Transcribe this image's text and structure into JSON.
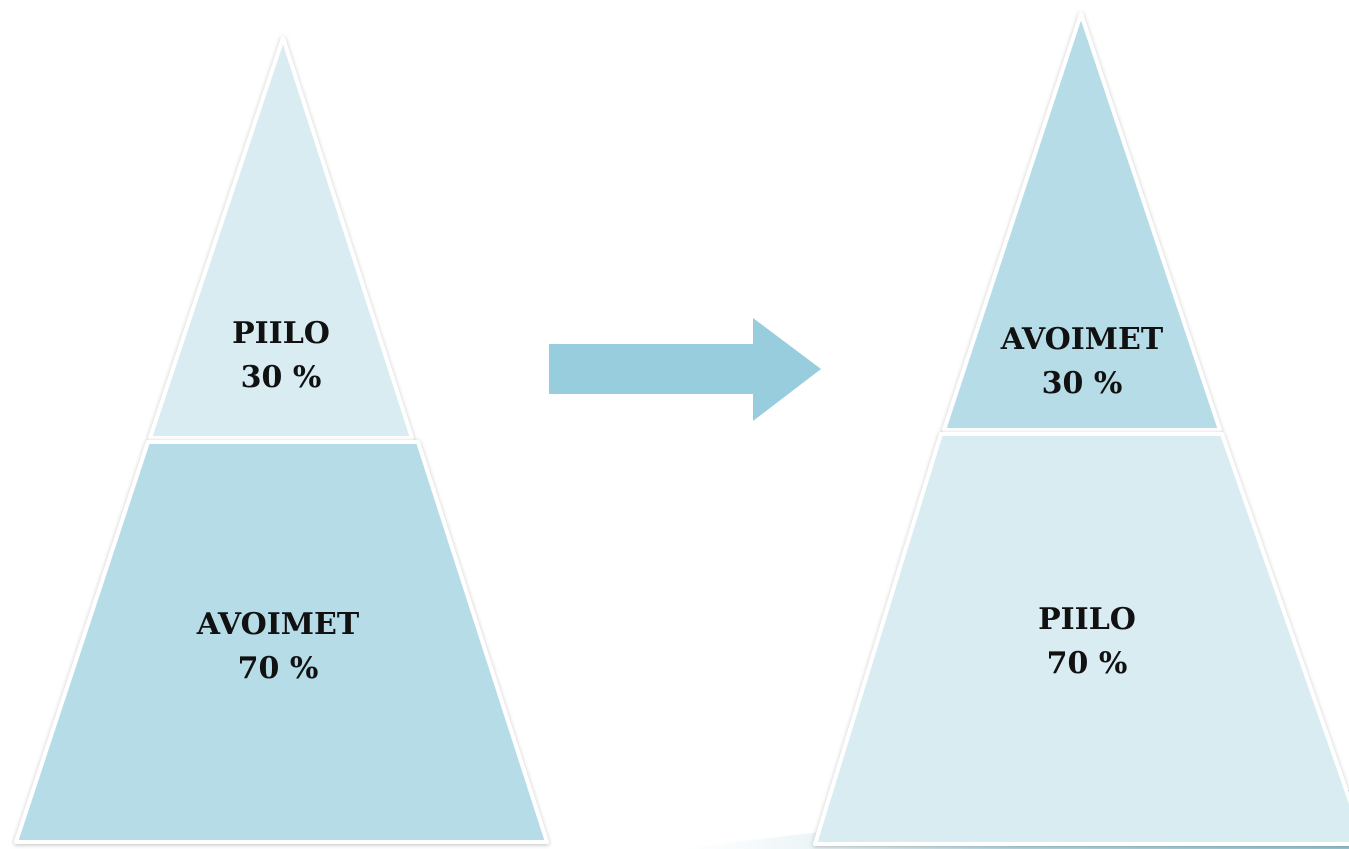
{
  "left_pyramid": {
    "top": {
      "name": "PIILO",
      "value": "30 %"
    },
    "bottom": {
      "name": "AVOIMET",
      "value": "70 %"
    }
  },
  "right_pyramid": {
    "top": {
      "name": "AVOIMET",
      "value": "30 %"
    },
    "bottom": {
      "name": "PIILO",
      "value": "70 %"
    }
  },
  "colors": {
    "light_segment": "#d8ecf2",
    "dark_segment": "#b6dce7",
    "arrow": "#97cddc",
    "outline": "#ffffff",
    "background": "#ffffff"
  },
  "icons": {
    "arrow": "right-arrow-icon"
  }
}
